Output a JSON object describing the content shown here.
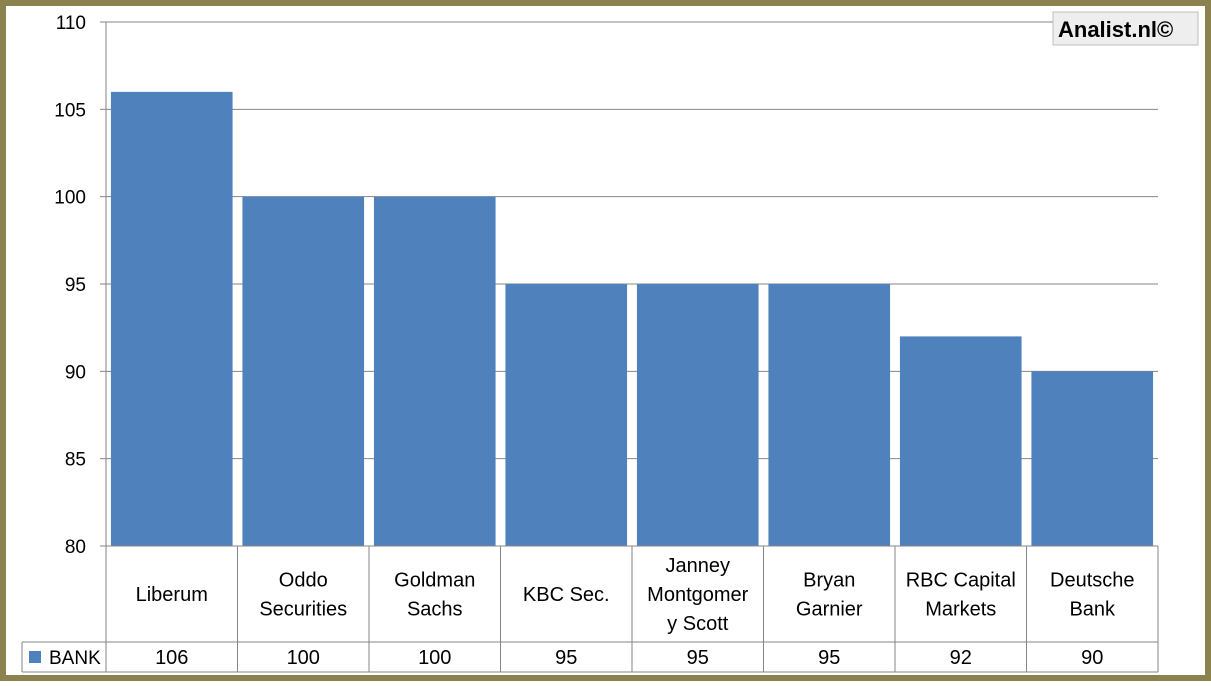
{
  "watermark": "Analist.nl©",
  "chart_data": {
    "type": "bar",
    "categories": [
      [
        "Liberum"
      ],
      [
        "Oddo",
        "Securities"
      ],
      [
        "Goldman",
        "Sachs"
      ],
      [
        "KBC Sec."
      ],
      [
        "Janney",
        "Montgomer",
        "y Scott"
      ],
      [
        "Bryan",
        "Garnier"
      ],
      [
        "RBC Capital",
        "Markets"
      ],
      [
        "Deutsche",
        "Bank"
      ]
    ],
    "series": [
      {
        "name": "BANK",
        "values": [
          106,
          100,
          100,
          95,
          95,
          95,
          92,
          90
        ],
        "color": "#4f81bd"
      }
    ],
    "ylim": [
      80,
      110
    ],
    "yticks": [
      80,
      85,
      90,
      95,
      100,
      105,
      110
    ],
    "grid": true,
    "data_table": true,
    "legend": "data-table-left"
  },
  "colors": {
    "frame": "#8b8250",
    "bar": "#4f81bd",
    "grid": "#868686",
    "watermark_bg": "#eeeeee"
  }
}
